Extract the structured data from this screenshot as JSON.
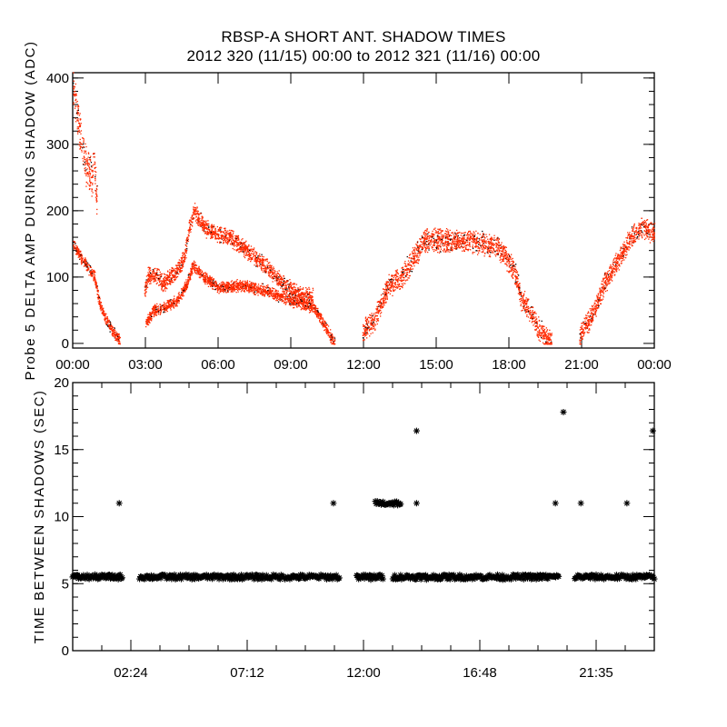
{
  "title": "RBSP-A SHORT ANT. SHADOW TIMES",
  "subtitle": "2012 320 (11/15) 00:00 to 2012 321 (11/16) 00:00",
  "colors": {
    "points": "#ff2a00",
    "secondary_points": "#000000",
    "markers": "#000000",
    "axes": "#000000"
  },
  "chart_data": [
    {
      "type": "scatter",
      "ylabel": "Probe 5 DELTA AMP DURING SHADOW (ADC)",
      "xlabel": "",
      "xlim_hours": [
        0,
        24
      ],
      "ylim": [
        -7,
        408
      ],
      "x_ticks": [
        "00:00",
        "03:00",
        "06:00",
        "09:00",
        "12:00",
        "15:00",
        "18:00",
        "21:00",
        "00:00"
      ],
      "y_ticks": [
        "0",
        "100",
        "200",
        "300",
        "400"
      ],
      "grid": false,
      "marker": "dot",
      "tracks": [
        {
          "points": [
            [
              0.0,
              395
            ],
            [
              0.15,
              350
            ],
            [
              0.5,
              270
            ],
            [
              0.8,
              250
            ],
            [
              0.85,
              295
            ],
            [
              1.0,
              200
            ]
          ],
          "spread": 35
        },
        {
          "points": [
            [
              0.0,
              150
            ],
            [
              0.5,
              120
            ],
            [
              0.9,
              100
            ],
            [
              1.1,
              60
            ],
            [
              1.3,
              42
            ],
            [
              1.6,
              20
            ],
            [
              1.95,
              4
            ]
          ],
          "spread": 10
        },
        {
          "points": [
            [
              2.95,
              80
            ],
            [
              3.1,
              103
            ],
            [
              3.5,
              100
            ],
            [
              3.7,
              92
            ],
            [
              4.2,
              105
            ],
            [
              4.6,
              130
            ],
            [
              4.8,
              175
            ],
            [
              5.0,
              200
            ],
            [
              5.4,
              175
            ],
            [
              6.0,
              165
            ],
            [
              6.5,
              160
            ],
            [
              7.2,
              140
            ],
            [
              8.0,
              115
            ],
            [
              8.7,
              90
            ],
            [
              9.3,
              75
            ],
            [
              9.9,
              70
            ]
          ],
          "spread": 15
        },
        {
          "points": [
            [
              3.0,
              30
            ],
            [
              3.3,
              50
            ],
            [
              3.8,
              55
            ],
            [
              4.3,
              65
            ],
            [
              4.7,
              90
            ],
            [
              4.95,
              118
            ],
            [
              5.4,
              100
            ],
            [
              6.0,
              85
            ],
            [
              7.0,
              88
            ],
            [
              8.0,
              80
            ],
            [
              9.0,
              65
            ],
            [
              9.9,
              55
            ],
            [
              10.2,
              40
            ],
            [
              10.5,
              20
            ],
            [
              10.8,
              0
            ]
          ],
          "spread": 10
        },
        {
          "points": [
            [
              11.95,
              18
            ],
            [
              12.4,
              35
            ],
            [
              12.7,
              58
            ],
            [
              13.0,
              86
            ],
            [
              13.6,
              102
            ],
            [
              14.2,
              137
            ],
            [
              14.5,
              158
            ],
            [
              15.5,
              155
            ],
            [
              16.5,
              155
            ],
            [
              17.5,
              148
            ],
            [
              18.2,
              113
            ],
            [
              18.5,
              68
            ],
            [
              18.9,
              45
            ],
            [
              19.3,
              18
            ],
            [
              19.75,
              0
            ]
          ],
          "spread": 20
        },
        {
          "points": [
            [
              20.9,
              11
            ],
            [
              21.5,
              49
            ],
            [
              22.0,
              95
            ],
            [
              22.5,
              127
            ],
            [
              23.0,
              159
            ],
            [
              23.5,
              177
            ],
            [
              24.0,
              165
            ]
          ],
          "spread": 18
        }
      ]
    },
    {
      "type": "scatter",
      "ylabel": "TIME BETWEEN SHADOWS (SEC)",
      "xlabel": "",
      "xlim_hours": [
        0,
        24
      ],
      "ylim": [
        0,
        20
      ],
      "x_ticks": [
        "02:24",
        "07:12",
        "12:00",
        "16:48",
        "21:35"
      ],
      "y_ticks": [
        "0",
        "5",
        "10",
        "15",
        "20"
      ],
      "grid": false,
      "marker": "asterisk",
      "bands": [
        {
          "x_range_hours": [
            0.0,
            2.05
          ],
          "y": 5.5
        },
        {
          "x_range_hours": [
            2.76,
            11.01
          ],
          "y": 5.5
        },
        {
          "x_range_hours": [
            11.72,
            12.81
          ],
          "y": 5.5
        },
        {
          "x_range_hours": [
            13.21,
            20.05
          ],
          "y": 5.5
        },
        {
          "x_range_hours": [
            20.72,
            24.0
          ],
          "y": 5.5
        },
        {
          "x_range_hours": [
            12.49,
            13.54
          ],
          "y": 11.0
        }
      ],
      "points": [
        {
          "x_hours": 1.92,
          "y": 11.0
        },
        {
          "x_hours": 10.76,
          "y": 11.0
        },
        {
          "x_hours": 14.19,
          "y": 16.4
        },
        {
          "x_hours": 14.19,
          "y": 11.0
        },
        {
          "x_hours": 19.92,
          "y": 11.0
        },
        {
          "x_hours": 20.25,
          "y": 17.8
        },
        {
          "x_hours": 20.97,
          "y": 11.0
        },
        {
          "x_hours": 22.87,
          "y": 11.0
        },
        {
          "x_hours": 23.94,
          "y": 16.4
        },
        {
          "x_hours": 12.3,
          "y": 5.3
        },
        {
          "x_hours": 14.6,
          "y": 5.3
        },
        {
          "x_hours": 17.75,
          "y": 5.3
        }
      ]
    }
  ]
}
